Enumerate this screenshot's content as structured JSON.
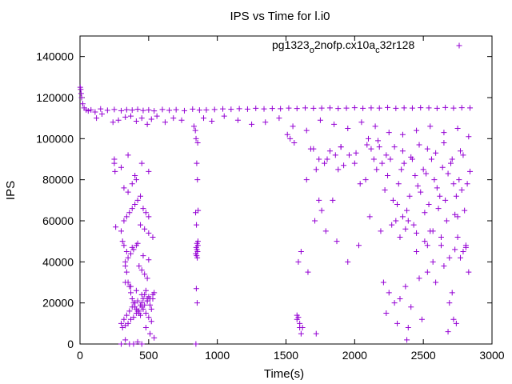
{
  "chart_data": {
    "type": "scatter",
    "title": "IPS vs Time for l.i0",
    "xlabel": "Time(s)",
    "ylabel": "IPS",
    "xlim": [
      0,
      3000
    ],
    "ylim": [
      0,
      150000
    ],
    "xticks": [
      0,
      500,
      1000,
      1500,
      2000,
      2500,
      3000
    ],
    "yticks": [
      0,
      20000,
      40000,
      60000,
      80000,
      100000,
      120000,
      140000
    ],
    "grid": false,
    "legend_position": "top-right",
    "series": [
      {
        "name_parts": {
          "a": "pg1323",
          "b": "o",
          "c": "2nofp.cx10a",
          "d": "c",
          "e": "32r128"
        },
        "color": "#9400d3",
        "marker": "plus",
        "x": [
          2,
          5,
          8,
          12,
          20,
          30,
          45,
          60,
          80,
          110,
          150,
          200,
          250,
          300,
          340,
          380,
          420,
          460,
          500,
          540,
          600,
          650,
          700,
          760,
          820,
          870,
          920,
          980,
          1040,
          1100,
          1160,
          1220,
          1280,
          1340,
          1400,
          1460,
          1520,
          1580,
          1640,
          1700,
          1760,
          1820,
          1880,
          1940,
          2000,
          2060,
          2120,
          2180,
          2240,
          2300,
          2360,
          2420,
          2480,
          2540,
          2600,
          2660,
          2720,
          2780,
          2840,
          120,
          160,
          240,
          280,
          330,
          370,
          410,
          450,
          490,
          520,
          560,
          620,
          680,
          740,
          830,
          900,
          960,
          1050,
          1150,
          1250,
          1350,
          1450,
          1550,
          1650,
          1750,
          1850,
          1950,
          2050,
          2150,
          2250,
          2350,
          2450,
          2550,
          2650,
          2750,
          2830,
          250,
          255,
          260,
          300,
          310,
          320,
          330,
          340,
          350,
          360,
          370,
          380,
          390,
          400,
          410,
          420,
          430,
          440,
          450,
          460,
          470,
          480,
          490,
          500,
          510,
          520,
          530,
          540,
          300,
          320,
          340,
          360,
          380,
          400,
          420,
          440,
          460,
          480,
          500,
          520,
          310,
          330,
          350,
          370,
          390,
          410,
          430,
          450,
          470,
          490,
          510,
          530,
          320,
          340,
          360,
          380,
          400,
          420,
          440,
          460,
          480,
          500,
          330,
          350,
          370,
          390,
          410,
          430,
          450,
          470,
          490,
          300,
          330,
          360,
          390,
          420,
          450,
          480,
          510,
          540,
          320,
          350,
          380,
          410,
          440,
          470,
          500,
          530,
          340,
          380,
          420,
          460,
          500,
          330,
          370,
          410,
          450,
          490,
          250,
          350,
          450,
          300,
          400,
          500,
          840,
          845,
          850,
          855,
          860,
          842,
          848,
          852,
          858,
          846,
          851,
          856,
          843,
          849,
          854,
          859,
          847,
          853,
          844,
          857,
          1580,
          1600,
          1620,
          1590,
          1610,
          1650,
          1700,
          1720,
          1740,
          1760,
          1780,
          1800,
          1840,
          1860,
          1880,
          1900,
          1920,
          1960,
          2000,
          2040,
          2080,
          2100,
          2120,
          2140,
          2160,
          2180,
          2200,
          2220,
          2240,
          2260,
          2280,
          2300,
          2320,
          2340,
          2360,
          2380,
          2400,
          2420,
          2440,
          2460,
          2480,
          2500,
          2520,
          2540,
          2560,
          2580,
          2600,
          2620,
          2640,
          2660,
          2680,
          2700,
          2720,
          2740,
          2760,
          2780,
          2800,
          2820,
          2840,
          1610,
          1660,
          1710,
          1790,
          1870,
          1950,
          2030,
          2110,
          2190,
          2270,
          2330,
          2390,
          2450,
          2510,
          2570,
          2630,
          2690,
          2750,
          2810,
          2210,
          2250,
          2290,
          2330,
          2370,
          2410,
          2470,
          2530,
          2590,
          2650,
          2710,
          2770,
          2830,
          2230,
          2310,
          2390,
          2490,
          2570,
          2690,
          2790,
          2310,
          2350,
          2430,
          2510,
          2550,
          2610,
          2670,
          2730,
          2750,
          2370,
          2450,
          2530,
          2630,
          2730,
          2810,
          1580,
          1590,
          1600,
          1720,
          2380,
          2680,
          2720,
          2740,
          1510,
          1530,
          1560,
          1680,
          1740,
          1820,
          1900,
          2010,
          2090,
          2170,
          2230,
          2290,
          2350,
          2410,
          2470,
          2530,
          2590,
          2650,
          2710,
          2770,
          2790
        ],
        "y": [
          125000,
          124000,
          122000,
          120000,
          117000,
          115000,
          114000,
          113500,
          114000,
          113000,
          114500,
          113800,
          114200,
          113600,
          114100,
          113900,
          114300,
          113700,
          114000,
          113500,
          114200,
          113800,
          114100,
          113600,
          114400,
          113900,
          114000,
          114200,
          114500,
          114300,
          114600,
          114400,
          114800,
          114500,
          114700,
          114600,
          114900,
          114700,
          115000,
          114800,
          114900,
          115000,
          114700,
          114900,
          115100,
          114800,
          115000,
          114900,
          115200,
          114800,
          115000,
          114900,
          115100,
          115000,
          114800,
          115200,
          114900,
          115100,
          115000,
          110000,
          112000,
          108000,
          109000,
          110500,
          111000,
          108500,
          110000,
          107000,
          109500,
          111000,
          108000,
          110000,
          109000,
          106000,
          110000,
          108500,
          111000,
          109000,
          107000,
          108000,
          110000,
          106000,
          104000,
          109000,
          107000,
          105000,
          108000,
          106000,
          103000,
          102000,
          104000,
          106000,
          103000,
          105000,
          101000,
          88000,
          84000,
          57000,
          55000,
          50000,
          48000,
          38000,
          35000,
          30000,
          28000,
          25000,
          22000,
          20000,
          18000,
          17000,
          16000,
          15000,
          14000,
          20000,
          22000,
          24000,
          26000,
          21000,
          23000,
          19000,
          17000,
          22000,
          25000,
          10000,
          12000,
          14000,
          16000,
          18000,
          20000,
          21000,
          19000,
          17000,
          15000,
          13000,
          11000,
          8000,
          9000,
          10000,
          12000,
          13000,
          15000,
          16000,
          18000,
          19000,
          21000,
          22000,
          24000,
          60000,
          62000,
          64000,
          66000,
          68000,
          70000,
          72000,
          66000,
          64000,
          62000,
          40000,
          42000,
          44000,
          46000,
          48000,
          38000,
          36000,
          34000,
          32000,
          0,
          2000,
          0,
          0,
          1000,
          0,
          8000,
          5000,
          3000,
          76000,
          74000,
          78000,
          80000,
          58000,
          56000,
          54000,
          52000,
          45000,
          47000,
          49000,
          43000,
          41000,
          30000,
          28000,
          26000,
          24000,
          22000,
          90000,
          92000,
          88000,
          86000,
          82000,
          84000,
          104000,
          100000,
          88000,
          80000,
          65000,
          64000,
          58000,
          49000,
          48000,
          47000,
          46000,
          45000,
          44000,
          43000,
          42000,
          50000,
          27000,
          20000,
          0,
          98000,
          12000,
          10000,
          8000,
          40000,
          5000,
          80000,
          95000,
          85000,
          70000,
          65000,
          88000,
          90000,
          70000,
          92000,
          85000,
          96000,
          87000,
          92000,
          88000,
          78000,
          80000,
          100000,
          95000,
          90000,
          85000,
          96000,
          88000,
          75000,
          82000,
          90000,
          70000,
          60000,
          78000,
          85000,
          88000,
          65000,
          72000,
          90000,
          82000,
          77000,
          74000,
          85000,
          83000,
          68000,
          90000,
          80000,
          76000,
          72000,
          86000,
          70000,
          83000,
          88000,
          78000,
          72000,
          80000,
          75000,
          65000,
          78000,
          84000,
          45000,
          35000,
          60000,
          55000,
          50000,
          40000,
          48000,
          62000,
          55000,
          58000,
          52000,
          60000,
          45000,
          50000,
          55000,
          48000,
          42000,
          52000,
          48000,
          30000,
          25000,
          20000,
          22000,
          28000,
          18000,
          32000,
          35000,
          30000,
          38000,
          25000,
          42000,
          35000,
          15000,
          10000,
          8000,
          12000,
          40000,
          20000,
          45000,
          68000,
          62000,
          58000,
          64000,
          55000,
          66000,
          60000,
          63000,
          62000,
          56000,
          54000,
          48000,
          52000,
          46000,
          47000,
          14000,
          13000,
          8000,
          5000,
          2000,
          6000,
          12000,
          10000,
          102000,
          100000,
          98000,
          95000,
          90000,
          94000,
          96000,
          93000,
          97000,
          99000,
          92000,
          96000,
          94000,
          91000,
          97000,
          95000,
          93000,
          98000,
          90000,
          94000,
          92000
        ]
      }
    ]
  }
}
